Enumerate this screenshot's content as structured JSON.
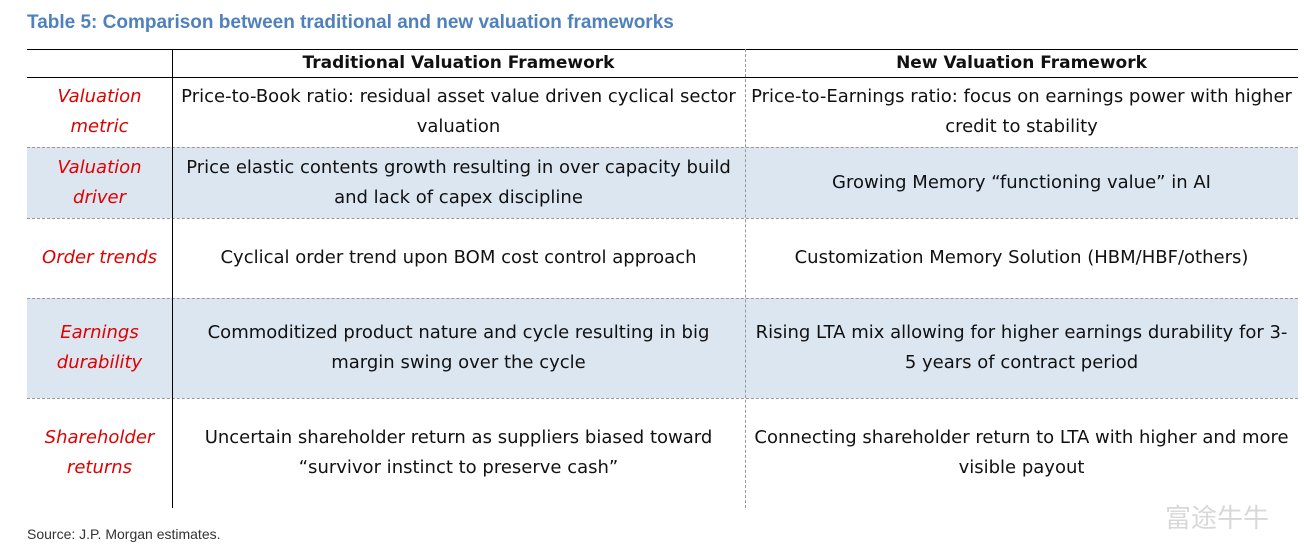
{
  "title": "Table 5: Comparison between traditional and new valuation frameworks",
  "table": {
    "columns": [
      "",
      "Traditional Valuation Framework",
      "New Valuation Framework"
    ],
    "rows": [
      [
        "Valuation metric",
        "Price-to-Book ratio: residual asset value driven cyclical sector valuation",
        "Price-to-Earnings ratio: focus on earnings power with higher credit to stability"
      ],
      [
        "Valuation driver",
        "Price elastic contents growth resulting in over capacity build and lack of capex discipline",
        "Growing Memory “functioning value” in AI"
      ],
      [
        "Order trends",
        "Cyclical order trend upon BOM cost control approach",
        "Customization Memory Solution (HBM/HBF/others)"
      ],
      [
        "Earnings durability",
        "Commoditized product nature and cycle resulting in big margin swing over the cycle",
        "Rising LTA mix allowing for higher earnings durability for 3-5 years of contract period"
      ],
      [
        "Shareholder returns",
        "Uncertain shareholder return as suppliers biased toward “survivor instinct to preserve cash”",
        "Connecting shareholder return to LTA with higher and more visible payout"
      ]
    ]
  },
  "source": "Source: J.P. Morgan estimates.",
  "watermark": "富途牛牛"
}
